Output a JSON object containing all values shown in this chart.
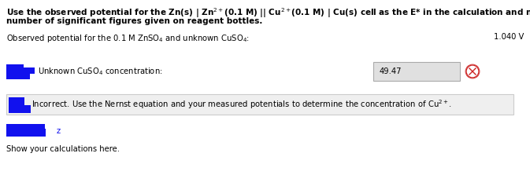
{
  "bg_color": "#ffffff",
  "title_line1": "Use the observed potential for the Zn(s) | Zn$^{2+}$(0.1 M) || Cu$^{2+}$(0.1 M) | Cu(s) cell as the E* in the calculation and note the",
  "title_line2": "number of significant figures given on reagent bottles.",
  "observed_label": "Observed potential for the 0.1 M ZnSO$_4$ and unknown CuSO$_4$:",
  "observed_value": "1.040 V",
  "unknown_label": "Unknown CuSO$_4$ concentration:",
  "input_value": "49.47",
  "feedback_text": "Incorrect. Use the Nernst equation and your measured potentials to determine the concentration of Cu$^{2+}$.",
  "show_calc_text": "Show your calculations here.",
  "input_box_color": "#e0e0e0",
  "feedback_box_color": "#efefef",
  "feedback_border_color": "#cccccc",
  "redacted_color": "#1111ee",
  "title_fontsize": 7.5,
  "body_fontsize": 7.2,
  "feedback_fontsize": 7.2
}
